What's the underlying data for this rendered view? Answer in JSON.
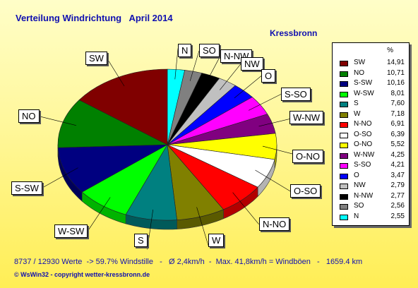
{
  "header": {
    "title": "Verteilung Windrichtung   April 2014",
    "location": "Kressbronn"
  },
  "footer": {
    "stats": "8737 / 12930 Werte  -> 59.7% Windstille   -   Ø 2,4km/h  -  Max. 41,8km/h = Windböen   -   1659.4 km",
    "copyright": "© WsWin32   -   copyright wetter-kressbronn.de"
  },
  "legend": {
    "unit": "%"
  },
  "chart_data": {
    "type": "pie",
    "title": "Verteilung Windrichtung   April 2014",
    "series_name": "Windrichtung",
    "unit": "%",
    "slices": [
      {
        "label": "SW",
        "value": 14.91,
        "color": "#800000",
        "display": "14,91"
      },
      {
        "label": "NO",
        "value": 10.71,
        "color": "#008000",
        "display": "10,71"
      },
      {
        "label": "S-SW",
        "value": 10.16,
        "color": "#000080",
        "display": "10,16"
      },
      {
        "label": "W-SW",
        "value": 8.01,
        "color": "#00ff00",
        "display": "8,01"
      },
      {
        "label": "S",
        "value": 7.6,
        "color": "#008080",
        "display": "7,60"
      },
      {
        "label": "W",
        "value": 7.18,
        "color": "#808000",
        "display": "7,18"
      },
      {
        "label": "N-NO",
        "value": 6.91,
        "color": "#ff0000",
        "display": "6,91"
      },
      {
        "label": "O-SO",
        "value": 6.39,
        "color": "#ffffff",
        "display": "6,39"
      },
      {
        "label": "O-NO",
        "value": 5.52,
        "color": "#ffff00",
        "display": "5,52"
      },
      {
        "label": "W-NW",
        "value": 4.25,
        "color": "#800080",
        "display": "4,25"
      },
      {
        "label": "S-SO",
        "value": 4.21,
        "color": "#ff00ff",
        "display": "4,21"
      },
      {
        "label": "O",
        "value": 3.47,
        "color": "#0000ff",
        "display": "3,47"
      },
      {
        "label": "NW",
        "value": 2.79,
        "color": "#c0c0c0",
        "display": "2,79"
      },
      {
        "label": "N-NW",
        "value": 2.77,
        "color": "#000000",
        "display": "2,77"
      },
      {
        "label": "SO",
        "value": 2.56,
        "color": "#808080",
        "display": "2,56"
      },
      {
        "label": "N",
        "value": 2.55,
        "color": "#00ffff",
        "display": "2,55"
      }
    ],
    "pie_order": [
      "N",
      "SO",
      "N-NW",
      "NW",
      "O",
      "S-SO",
      "W-NW",
      "O-NO",
      "O-SO",
      "N-NO",
      "W",
      "S",
      "W-SW",
      "S-SW",
      "NO",
      "SW"
    ]
  }
}
